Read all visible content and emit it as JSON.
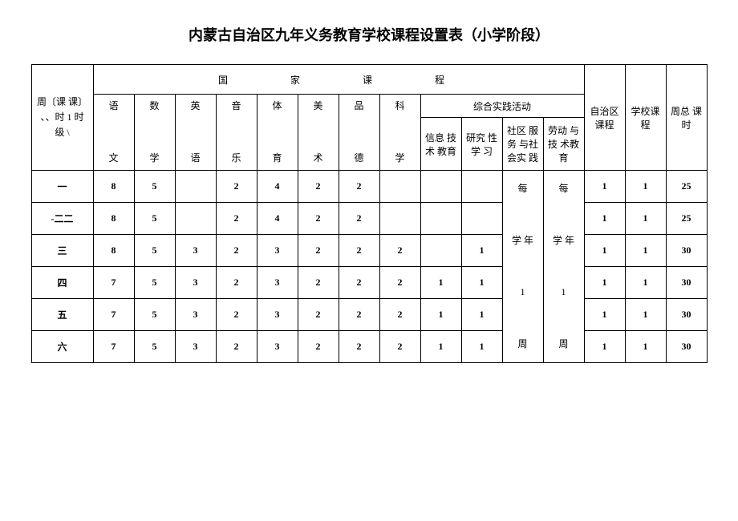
{
  "title": "内蒙古自治区九年义务教育学校课程设置表（小学阶段）",
  "header": {
    "corner": "周〔课 课〕\n、、时 1 时\n级 \\",
    "nation": "国　　家　　课　　程",
    "auto": "自治区课程",
    "school": "学校课程",
    "total": "周总 课时",
    "practice": "综合实践活动",
    "subjects": [
      "语\n\n文",
      "数\n\n学",
      "英\n\n语",
      "音\n\n乐",
      "体\n\n育",
      "美\n\n术",
      "品\n\n德",
      "科\n\n学"
    ],
    "practice_sub": [
      "信息 技术 教育",
      "研究 性 学 习",
      "社区 服务 与社会实 践",
      "劳动 与技 术教育"
    ]
  },
  "merged": {
    "col12": "每\n\n学 年\n\n1\n\n周",
    "col13": "每\n\n学 年\n\n1\n\n周"
  },
  "rows": [
    {
      "grade": "一",
      "cells": [
        "8",
        "5",
        "",
        "2",
        "4",
        "2",
        "2",
        "",
        "",
        ""
      ],
      "auto": "1",
      "school": "1",
      "total": "25"
    },
    {
      "grade": "-二二",
      "cells": [
        "8",
        "5",
        "",
        "2",
        "4",
        "2",
        "2",
        "",
        "",
        ""
      ],
      "auto": "1",
      "school": "1",
      "total": "25"
    },
    {
      "grade": "三",
      "cells": [
        "8",
        "5",
        "3",
        "2",
        "3",
        "2",
        "2",
        "2",
        "",
        "1"
      ],
      "auto": "1",
      "school": "1",
      "total": "30"
    },
    {
      "grade": "四",
      "cells": [
        "7",
        "5",
        "3",
        "2",
        "3",
        "2",
        "2",
        "2",
        "1",
        "1"
      ],
      "auto": "1",
      "school": "1",
      "total": "30"
    },
    {
      "grade": "五",
      "cells": [
        "7",
        "5",
        "3",
        "2",
        "3",
        "2",
        "2",
        "2",
        "1",
        "1"
      ],
      "auto": "1",
      "school": "1",
      "total": "30"
    },
    {
      "grade": "六",
      "cells": [
        "7",
        "5",
        "3",
        "2",
        "3",
        "2",
        "2",
        "2",
        "1",
        "1"
      ],
      "auto": "1",
      "school": "1",
      "total": "30"
    }
  ],
  "style": {
    "border_color": "#000000",
    "bg": "#ffffff",
    "title_fontsize": 18,
    "cell_fontsize": 12
  }
}
